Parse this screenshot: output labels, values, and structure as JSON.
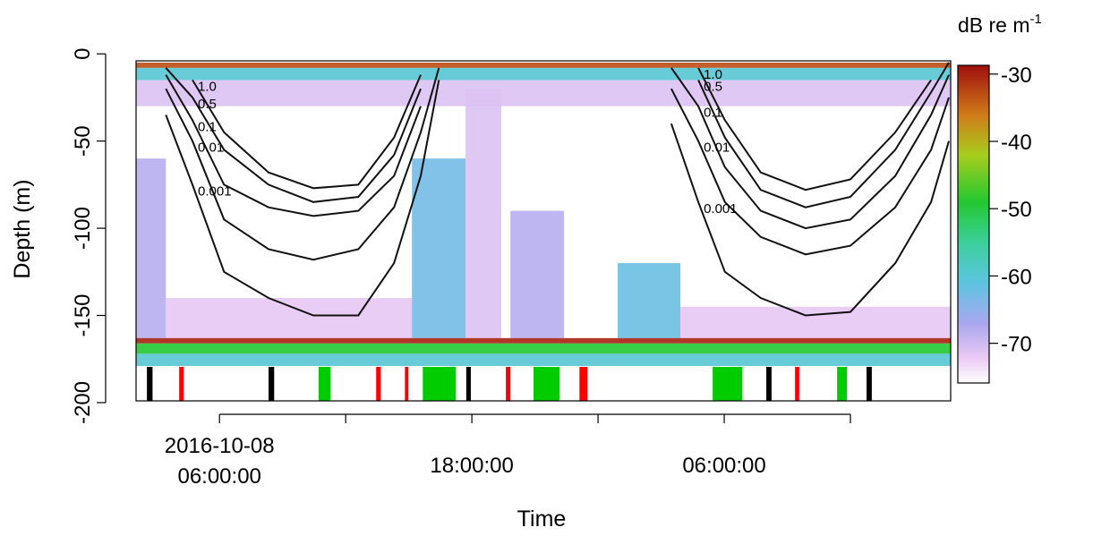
{
  "chart_data": {
    "type": "echogram",
    "xlabel": "Time",
    "ylabel": "Depth (m)",
    "xlim": [
      "2016-10-08 02:02:00",
      "2016-10-09 16:46:00"
    ],
    "xticks": [
      {
        "value": "2016-10-08 06:00:00",
        "label": [
          "2016-10-08",
          "06:00:00"
        ]
      },
      {
        "value": "2016-10-08 12:00:00",
        "label": null
      },
      {
        "value": "2016-10-08 18:00:00",
        "label": [
          "18:00:00"
        ]
      },
      {
        "value": "2016-10-09 00:00:00",
        "label": null
      },
      {
        "value": "2016-10-09 06:00:00",
        "label": [
          "06:00:00"
        ]
      },
      {
        "value": "2016-10-09 12:00:00",
        "label": null
      }
    ],
    "ylim": [
      -199,
      -4
    ],
    "yticks": [
      0,
      -50,
      -100,
      -150,
      -200
    ],
    "colorbar": {
      "title": "dB re m",
      "title_sup": "-1",
      "lim": [
        -75.9,
        -28.7
      ],
      "ticks": [
        -30,
        -40,
        -50,
        -60,
        -70
      ],
      "colormap": [
        {
          "value": -75.9,
          "color": "#ffffff"
        },
        {
          "value": -72,
          "color": "#e8c8f4"
        },
        {
          "value": -67,
          "color": "#a9a8ee"
        },
        {
          "value": -61,
          "color": "#5cc4e0"
        },
        {
          "value": -55,
          "color": "#3ccf9a"
        },
        {
          "value": -49,
          "color": "#22c830"
        },
        {
          "value": -42,
          "color": "#a8cc1c"
        },
        {
          "value": -36,
          "color": "#d07a18"
        },
        {
          "value": -28.7,
          "color": "#9e0e0e"
        }
      ]
    },
    "echoes": [
      {
        "x0": "2016-10-08 02:02:00",
        "x1": "2016-10-09 16:46:00",
        "top": -15,
        "bottom": -30,
        "sv": -71
      },
      {
        "x0": "2016-10-08 02:02:00",
        "x1": "2016-10-08 03:27:00",
        "top": -60,
        "bottom": -163,
        "sv": -68
      },
      {
        "x0": "2016-10-08 03:27:00",
        "x1": "2016-10-08 15:09:00",
        "top": -140,
        "bottom": -163,
        "sv": -72
      },
      {
        "x0": "2016-10-08 15:09:00",
        "x1": "2016-10-08 17:42:00",
        "top": -60,
        "bottom": -163,
        "sv": -63
      },
      {
        "x0": "2016-10-08 17:42:00",
        "x1": "2016-10-08 19:24:00",
        "top": -20,
        "bottom": -163,
        "sv": -71
      },
      {
        "x0": "2016-10-08 19:50:00",
        "x1": "2016-10-08 22:23:00",
        "top": -90,
        "bottom": -163,
        "sv": -68
      },
      {
        "x0": "2016-10-09 00:56:00",
        "x1": "2016-10-09 03:55:00",
        "top": -120,
        "bottom": -163,
        "sv": -62
      },
      {
        "x0": "2016-10-09 03:55:00",
        "x1": "2016-10-09 16:46:00",
        "top": -145,
        "bottom": -163,
        "sv": -72
      },
      {
        "x0": "2016-10-08 02:02:00",
        "x1": "2016-10-09 16:46:00",
        "top": -8,
        "bottom": -15,
        "sv": -60
      },
      {
        "x0": "2016-10-08 02:02:00",
        "x1": "2016-10-09 16:46:00",
        "top": -5,
        "bottom": -8,
        "sv": -33
      },
      {
        "x0": "2016-10-08 02:02:00",
        "x1": "2016-10-09 16:46:00",
        "top": -166,
        "bottom": -172,
        "sv": -49
      },
      {
        "x0": "2016-10-08 02:02:00",
        "x1": "2016-10-09 16:46:00",
        "top": -172,
        "bottom": -179,
        "sv": -60
      },
      {
        "x0": "2016-10-08 02:02:00",
        "x1": "2016-10-09 16:46:00",
        "top": -163,
        "bottom": -166,
        "sv": -30
      }
    ],
    "contour_days": [
      {
        "x": [
          "2016-10-08 03:27:00",
          "2016-10-08 04:43:00",
          "2016-10-08 06:13:00",
          "2016-10-08 08:20:00",
          "2016-10-08 10:28:00",
          "2016-10-08 12:36:00",
          "2016-10-08 14:18:00",
          "2016-10-08 15:34:00",
          "2016-10-08 16:26:00"
        ]
      },
      {
        "x": [
          "2016-10-09 03:29:00",
          "2016-10-09 04:46:00",
          "2016-10-09 06:02:00",
          "2016-10-09 07:44:00",
          "2016-10-09 09:52:00",
          "2016-10-09 12:00:00",
          "2016-10-09 14:08:00",
          "2016-10-09 15:50:00",
          "2016-10-09 16:41:00"
        ]
      }
    ],
    "contours": [
      {
        "name": "1.0",
        "color": "#111111",
        "values": [
          [
            null,
            -15,
            -45,
            -68,
            -77,
            -75,
            -48,
            -12,
            null
          ],
          [
            null,
            -8,
            -38,
            -68,
            -78,
            -72,
            -45,
            -15,
            null
          ]
        ]
      },
      {
        "name": "0.5",
        "color": "#111111",
        "values": [
          [
            -8,
            -25,
            -55,
            -75,
            -85,
            -82,
            -58,
            -20,
            null
          ],
          [
            null,
            -15,
            -48,
            -78,
            -88,
            -82,
            -55,
            -22,
            -5
          ]
        ]
      },
      {
        "name": "0.1",
        "color": "#111111",
        "values": [
          [
            -12,
            -38,
            -75,
            -88,
            -93,
            -90,
            -70,
            -30,
            null
          ],
          [
            -8,
            -30,
            -65,
            -90,
            -100,
            -95,
            -70,
            -35,
            -12
          ]
        ]
      },
      {
        "name": "0.01",
        "color": "#111111",
        "values": [
          [
            -20,
            -50,
            -95,
            -112,
            -118,
            -112,
            -88,
            -45,
            -8
          ],
          [
            -20,
            -50,
            -85,
            -105,
            -115,
            -110,
            -88,
            -55,
            -25
          ]
        ]
      },
      {
        "name": "0.001",
        "color": "#111111",
        "values": [
          [
            -35,
            -75,
            -125,
            -140,
            -150,
            -150,
            -120,
            -70,
            -15
          ],
          [
            -40,
            -85,
            -125,
            -140,
            -150,
            -148,
            -120,
            -85,
            -50
          ]
        ]
      }
    ],
    "events": [
      {
        "x0": "2016-10-08 02:33:00",
        "x1": "2016-10-08 02:49:00",
        "color": "#000000"
      },
      {
        "x0": "2016-10-08 04:05:00",
        "x1": "2016-10-08 04:18:00",
        "color": "#ff0000"
      },
      {
        "x0": "2016-10-08 08:20:00",
        "x1": "2016-10-08 08:36:00",
        "color": "#000000"
      },
      {
        "x0": "2016-10-08 10:43:00",
        "x1": "2016-10-08 11:17:00",
        "color": "#00cc00"
      },
      {
        "x0": "2016-10-08 13:27:00",
        "x1": "2016-10-08 13:40:00",
        "color": "#ff0000"
      },
      {
        "x0": "2016-10-08 14:49:00",
        "x1": "2016-10-08 14:59:00",
        "color": "#ff0000"
      },
      {
        "x0": "2016-10-08 15:40:00",
        "x1": "2016-10-08 17:14:00",
        "color": "#00cc00"
      },
      {
        "x0": "2016-10-08 17:44:00",
        "x1": "2016-10-08 17:57:00",
        "color": "#000000"
      },
      {
        "x0": "2016-10-08 19:37:00",
        "x1": "2016-10-08 19:50:00",
        "color": "#ff0000"
      },
      {
        "x0": "2016-10-08 20:56:00",
        "x1": "2016-10-08 22:10:00",
        "color": "#00cc00"
      },
      {
        "x0": "2016-10-08 23:07:00",
        "x1": "2016-10-08 23:30:00",
        "color": "#ff0000"
      },
      {
        "x0": "2016-10-09 05:27:00",
        "x1": "2016-10-09 06:51:00",
        "color": "#00cc00"
      },
      {
        "x0": "2016-10-09 08:00:00",
        "x1": "2016-10-09 08:15:00",
        "color": "#000000"
      },
      {
        "x0": "2016-10-09 09:22:00",
        "x1": "2016-10-09 09:34:00",
        "color": "#ff0000"
      },
      {
        "x0": "2016-10-09 11:22:00",
        "x1": "2016-10-09 11:50:00",
        "color": "#00cc00"
      },
      {
        "x0": "2016-10-09 12:46:00",
        "x1": "2016-10-09 13:01:00",
        "color": "#000000"
      }
    ]
  }
}
